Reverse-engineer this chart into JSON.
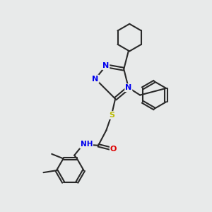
{
  "bg_color": "#e8eaea",
  "bond_color": "#2a2a2a",
  "N_color": "#0000ee",
  "O_color": "#dd0000",
  "S_color": "#bbbb00",
  "H_color": "#555555",
  "fig_w": 3.0,
  "fig_h": 3.0,
  "dpi": 100,
  "lw": 1.5,
  "fs": 8.0,
  "xlim": [
    0,
    10
  ],
  "ylim": [
    0,
    10
  ]
}
